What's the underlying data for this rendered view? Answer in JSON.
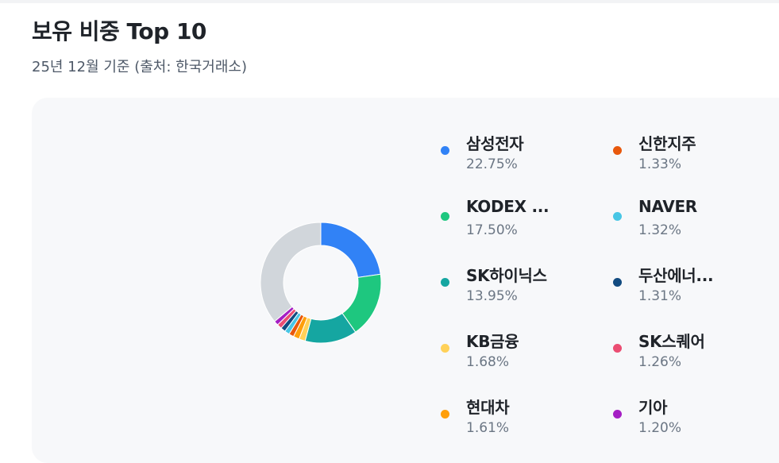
{
  "header": {
    "title": "보유 비중 Top 10",
    "subtitle": "25년 12월 기준 (출처: 한국거래소)"
  },
  "chart_data": {
    "type": "pie",
    "variant": "donut",
    "legend_placement": "right",
    "series": [
      {
        "name": "삼성전자",
        "label": "삼성전자",
        "value": 22.75,
        "value_label": "22.75%",
        "color": "#3182f6"
      },
      {
        "name": "KODEX ...",
        "label": "KODEX ...",
        "value": 17.5,
        "value_label": "17.50%",
        "color": "#1ec77f"
      },
      {
        "name": "SK하이닉스",
        "label": "SK하이닉스",
        "value": 13.95,
        "value_label": "13.95%",
        "color": "#15a6a1"
      },
      {
        "name": "KB금융",
        "label": "KB금융",
        "value": 1.68,
        "value_label": "1.68%",
        "color": "#ffd158"
      },
      {
        "name": "현대차",
        "label": "현대차",
        "value": 1.61,
        "value_label": "1.61%",
        "color": "#ff9f0a"
      },
      {
        "name": "신한지주",
        "label": "신한지주",
        "value": 1.33,
        "value_label": "1.33%",
        "color": "#e8580c"
      },
      {
        "name": "NAVER",
        "label": "NAVER",
        "value": 1.32,
        "value_label": "1.32%",
        "color": "#48c6e5"
      },
      {
        "name": "두산에너...",
        "label": "두산에너...",
        "value": 1.31,
        "value_label": "1.31%",
        "color": "#124b80"
      },
      {
        "name": "SK스퀘어",
        "label": "SK스퀘어",
        "value": 1.26,
        "value_label": "1.26%",
        "color": "#eb4d72"
      },
      {
        "name": "기아",
        "label": "기아",
        "value": 1.2,
        "value_label": "1.20%",
        "color": "#a51fc4"
      }
    ],
    "remainder_value": 36.09,
    "remainder_color": "#d1d6db"
  }
}
